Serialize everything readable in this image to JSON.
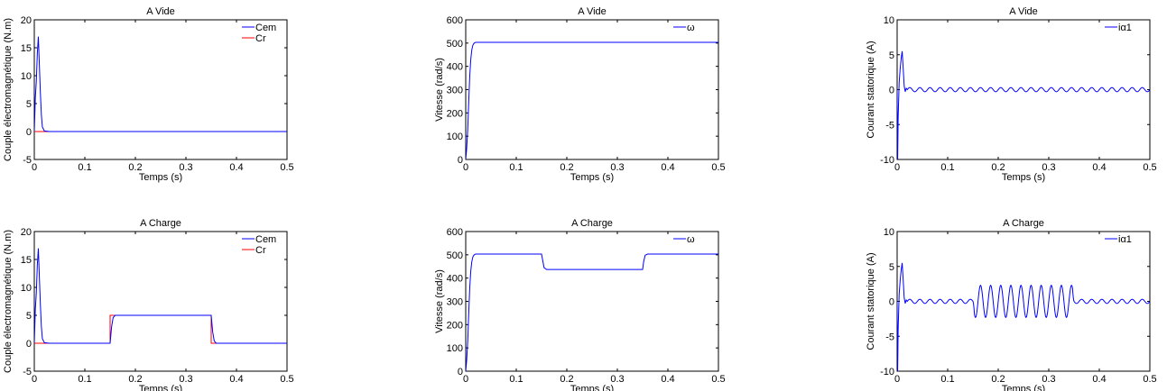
{
  "chart_data": [
    {
      "type": "line",
      "title": "A Vide",
      "xlabel": "Temps (s)",
      "ylabel": "Couple électromagnétique (N.m)",
      "xlim": [
        0,
        0.5
      ],
      "ylim": [
        -5,
        20
      ],
      "xticks": [
        0,
        0.1,
        0.2,
        0.3,
        0.4,
        0.5
      ],
      "xtick_labels": [
        "0",
        "0.1",
        "0.2",
        "0.3",
        "0.4",
        "0.5"
      ],
      "yticks": [
        -5,
        0,
        5,
        10,
        15,
        20
      ],
      "ytick_labels": [
        "-5",
        "0",
        "5",
        "10",
        "15",
        "20"
      ],
      "legend": "top-right",
      "series": [
        {
          "name": "Cem",
          "color": "#0000ff",
          "x": [
            0,
            0.002,
            0.004,
            0.006,
            0.008,
            0.01,
            0.012,
            0.014,
            0.016,
            0.02,
            0.03,
            0.5
          ],
          "y": [
            0,
            6,
            9,
            14,
            17,
            12,
            7,
            3,
            0.8,
            0.1,
            0,
            0
          ]
        },
        {
          "name": "Cr",
          "color": "#ff0000",
          "x": [
            0,
            0.5
          ],
          "y": [
            0,
            0
          ]
        }
      ]
    },
    {
      "type": "line",
      "title": "A Vide",
      "xlabel": "Temps (s)",
      "ylabel": "Vitesse (rad/s)",
      "xlim": [
        0,
        0.5
      ],
      "ylim": [
        0,
        600
      ],
      "xticks": [
        0,
        0.1,
        0.2,
        0.3,
        0.4,
        0.5
      ],
      "xtick_labels": [
        "0",
        "0.1",
        "0.2",
        "0.3",
        "0.4",
        "0.5"
      ],
      "yticks": [
        0,
        100,
        200,
        300,
        400,
        500,
        600
      ],
      "ytick_labels": [
        "0",
        "100",
        "200",
        "300",
        "400",
        "500",
        "600"
      ],
      "legend": "top-right",
      "series": [
        {
          "name": "ω",
          "color": "#0000ff",
          "x": [
            0,
            0.002,
            0.004,
            0.006,
            0.008,
            0.01,
            0.012,
            0.014,
            0.016,
            0.018,
            0.02,
            0.5
          ],
          "y": [
            0,
            50,
            130,
            250,
            360,
            430,
            470,
            490,
            498,
            502,
            503,
            503
          ]
        }
      ]
    },
    {
      "type": "line",
      "title": "A Vide",
      "xlabel": "Temps (s)",
      "ylabel": "Courant statorique (A)",
      "xlim": [
        0,
        0.5
      ],
      "ylim": [
        -10,
        10
      ],
      "xticks": [
        0,
        0.1,
        0.2,
        0.3,
        0.4,
        0.5
      ],
      "xtick_labels": [
        "0",
        "0.1",
        "0.2",
        "0.3",
        "0.4",
        "0.5"
      ],
      "yticks": [
        -10,
        -5,
        0,
        5,
        10
      ],
      "ytick_labels": [
        "-10",
        "-5",
        "0",
        "5",
        "10"
      ],
      "legend": "top-right",
      "series": [
        {
          "name": "iα1",
          "color": "#0000ff",
          "x": [
            0,
            0.001,
            0.002,
            0.004,
            0.006,
            0.008,
            0.01,
            0.012,
            0.014,
            0.016,
            0.018,
            0.02
          ],
          "y": [
            0,
            -10,
            -4,
            1,
            3,
            4.5,
            5.5,
            3,
            0.5,
            -0.3,
            0.2,
            0
          ],
          "ripple": {
            "from": 0.02,
            "to": 0.5,
            "amplitude": 0.3,
            "frequency": 50
          }
        }
      ]
    },
    {
      "type": "line",
      "title": "A Charge",
      "xlabel": "Temps (s)",
      "ylabel": "Couple électromagnétique (N.m)",
      "xlim": [
        0,
        0.5
      ],
      "ylim": [
        -5,
        20
      ],
      "xticks": [
        0,
        0.1,
        0.2,
        0.3,
        0.4,
        0.5
      ],
      "xtick_labels": [
        "0",
        "0.1",
        "0.2",
        "0.3",
        "0.4",
        "0.5"
      ],
      "yticks": [
        -5,
        0,
        5,
        10,
        15,
        20
      ],
      "ytick_labels": [
        "-5",
        "0",
        "5",
        "10",
        "15",
        "20"
      ],
      "legend": "top-right",
      "series": [
        {
          "name": "Cem",
          "color": "#0000ff",
          "x": [
            0,
            0.002,
            0.004,
            0.006,
            0.008,
            0.01,
            0.012,
            0.014,
            0.016,
            0.02,
            0.03,
            0.15,
            0.153,
            0.156,
            0.16,
            0.35,
            0.353,
            0.356,
            0.36,
            0.5
          ],
          "y": [
            0,
            6,
            9,
            14,
            17,
            12,
            7,
            3,
            0.8,
            0.1,
            0,
            0,
            3,
            4.6,
            5,
            5,
            2,
            0.4,
            0,
            0
          ]
        },
        {
          "name": "Cr",
          "color": "#ff0000",
          "x": [
            0,
            0.15,
            0.15,
            0.35,
            0.35,
            0.5
          ],
          "y": [
            0,
            0,
            5,
            5,
            0,
            0
          ]
        }
      ]
    },
    {
      "type": "line",
      "title": "A Charge",
      "xlabel": "Temps (s)",
      "ylabel": "Vitesse (rad/s)",
      "xlim": [
        0,
        0.5
      ],
      "ylim": [
        0,
        600
      ],
      "xticks": [
        0,
        0.1,
        0.2,
        0.3,
        0.4,
        0.5
      ],
      "xtick_labels": [
        "0",
        "0.1",
        "0.2",
        "0.3",
        "0.4",
        "0.5"
      ],
      "yticks": [
        0,
        100,
        200,
        300,
        400,
        500,
        600
      ],
      "ytick_labels": [
        "0",
        "100",
        "200",
        "300",
        "400",
        "500",
        "600"
      ],
      "legend": "top-right",
      "series": [
        {
          "name": "ω",
          "color": "#0000ff",
          "x": [
            0,
            0.002,
            0.004,
            0.006,
            0.008,
            0.01,
            0.012,
            0.014,
            0.016,
            0.018,
            0.02,
            0.15,
            0.152,
            0.155,
            0.16,
            0.35,
            0.352,
            0.355,
            0.36,
            0.5
          ],
          "y": [
            0,
            50,
            130,
            250,
            360,
            430,
            470,
            490,
            498,
            502,
            503,
            503,
            480,
            445,
            437,
            437,
            470,
            498,
            503,
            503
          ]
        }
      ]
    },
    {
      "type": "line",
      "title": "A Charge",
      "xlabel": "Temps (s)",
      "ylabel": "Courant statorique (A)",
      "xlim": [
        0,
        0.5
      ],
      "ylim": [
        -10,
        10
      ],
      "xticks": [
        0,
        0.1,
        0.2,
        0.3,
        0.4,
        0.5
      ],
      "xtick_labels": [
        "0",
        "0.1",
        "0.2",
        "0.3",
        "0.4",
        "0.5"
      ],
      "yticks": [
        -10,
        -5,
        0,
        5,
        10
      ],
      "ytick_labels": [
        "-10",
        "-5",
        "0",
        "5",
        "10"
      ],
      "legend": "top-right",
      "series": [
        {
          "name": "iα1",
          "color": "#0000ff",
          "x": [
            0,
            0.001,
            0.002,
            0.004,
            0.006,
            0.008,
            0.01,
            0.012,
            0.014,
            0.016,
            0.018,
            0.02
          ],
          "y": [
            0,
            -10,
            -4,
            1,
            3,
            4.5,
            5.5,
            3,
            0.5,
            -0.3,
            0.2,
            0
          ],
          "ripple": {
            "from": 0.02,
            "to": 0.5,
            "amplitude": 0.3,
            "frequency": 50,
            "load": {
              "from": 0.15,
              "to": 0.35,
              "amplitude": 2.3
            }
          }
        }
      ]
    }
  ]
}
